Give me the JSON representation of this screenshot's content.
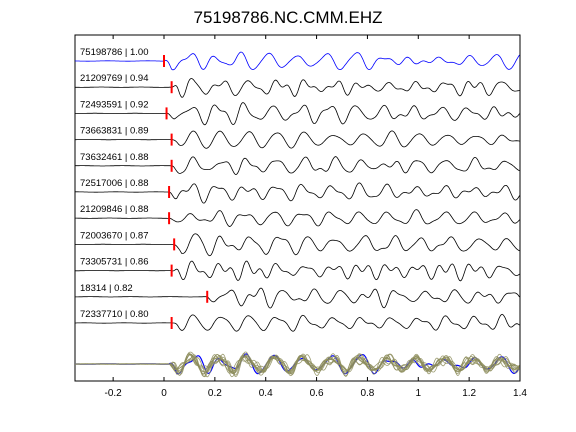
{
  "chart_data": {
    "type": "line",
    "title": "75198786.NC.CMM.EHZ",
    "xlabel": "",
    "ylabel": "",
    "xlim": [
      -0.35,
      1.4
    ],
    "x_ticks": [
      -0.2,
      0,
      0.2,
      0.4,
      0.6,
      0.8,
      1,
      1.2,
      1.4
    ],
    "x_tick_labels": [
      "-0.2",
      "0",
      "0.2",
      "0.4",
      "0.6",
      "0.8",
      "1",
      "1.2",
      "1.4"
    ],
    "grid": false,
    "colors": {
      "master": "#0000ff",
      "trace": "#000000",
      "pick": "#ff0000",
      "overlay": "#8c8c5a"
    },
    "series": [
      {
        "label": "75198786 | 1.00",
        "pick_time": 0.0,
        "color": "#0000ff",
        "seed": 1
      },
      {
        "label": "21209769 | 0.94",
        "pick_time": 0.03,
        "color": "#000000",
        "seed": 2
      },
      {
        "label": "72493591 | 0.92",
        "pick_time": 0.01,
        "color": "#000000",
        "seed": 3
      },
      {
        "label": "73663831 | 0.89",
        "pick_time": 0.03,
        "color": "#000000",
        "seed": 4
      },
      {
        "label": "73632461 | 0.88",
        "pick_time": 0.03,
        "color": "#000000",
        "seed": 5
      },
      {
        "label": "72517006 | 0.88",
        "pick_time": 0.02,
        "color": "#000000",
        "seed": 6
      },
      {
        "label": "21209846 | 0.88",
        "pick_time": 0.02,
        "color": "#000000",
        "seed": 7
      },
      {
        "label": "72003670 | 0.87",
        "pick_time": 0.04,
        "color": "#000000",
        "seed": 8
      },
      {
        "label": "73305731 | 0.86",
        "pick_time": 0.03,
        "color": "#000000",
        "seed": 9
      },
      {
        "label": "18314 | 0.82",
        "pick_time": 0.17,
        "color": "#000000",
        "seed": 10
      },
      {
        "label": "72337710 | 0.80",
        "pick_time": 0.03,
        "color": "#000000",
        "seed": 11
      }
    ],
    "stack_overlay": true
  }
}
